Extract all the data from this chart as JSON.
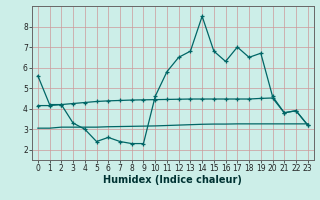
{
  "xlabel": "Humidex (Indice chaleur)",
  "background_color": "#cceee8",
  "grid_color": "#bbcccc",
  "line_color": "#006666",
  "x_values": [
    0,
    1,
    2,
    3,
    4,
    5,
    6,
    7,
    8,
    9,
    10,
    11,
    12,
    13,
    14,
    15,
    16,
    17,
    18,
    19,
    20,
    21,
    22,
    23
  ],
  "line1": [
    5.6,
    4.2,
    4.2,
    3.3,
    3.0,
    2.4,
    2.6,
    2.4,
    2.3,
    2.3,
    4.6,
    5.8,
    6.5,
    6.8,
    8.5,
    6.8,
    6.3,
    7.0,
    6.5,
    6.7,
    4.6,
    3.8,
    3.9,
    3.2
  ],
  "line2": [
    4.15,
    4.15,
    4.2,
    4.25,
    4.3,
    4.35,
    4.38,
    4.4,
    4.42,
    4.43,
    4.44,
    4.45,
    4.46,
    4.47,
    4.47,
    4.47,
    4.47,
    4.47,
    4.47,
    4.5,
    4.52,
    3.8,
    3.9,
    3.2
  ],
  "line3": [
    3.05,
    3.05,
    3.1,
    3.1,
    3.1,
    3.1,
    3.12,
    3.13,
    3.14,
    3.15,
    3.16,
    3.18,
    3.2,
    3.22,
    3.24,
    3.25,
    3.25,
    3.26,
    3.26,
    3.26,
    3.26,
    3.26,
    3.26,
    3.26
  ],
  "ylim": [
    1.5,
    9.0
  ],
  "yticks": [
    2,
    3,
    4,
    5,
    6,
    7,
    8
  ],
  "xlim": [
    -0.5,
    23.5
  ],
  "xticks": [
    0,
    1,
    2,
    3,
    4,
    5,
    6,
    7,
    8,
    9,
    10,
    11,
    12,
    13,
    14,
    15,
    16,
    17,
    18,
    19,
    20,
    21,
    22,
    23
  ],
  "tick_fontsize": 5.5,
  "xlabel_fontsize": 7.0
}
